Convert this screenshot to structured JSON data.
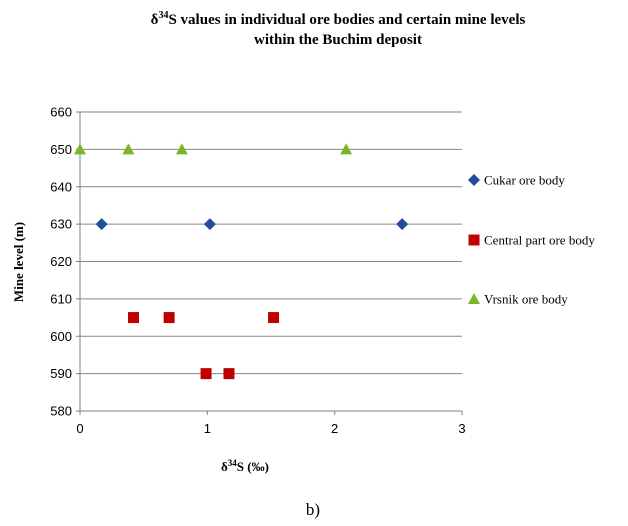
{
  "chart_data": {
    "type": "scatter",
    "title": {
      "line1_prefix": "δ",
      "line1_sup": "34",
      "line1_rest": "S values in individual ore bodies and certain mine levels",
      "line2": "within the Buchim deposit"
    },
    "xlabel": {
      "prefix": "δ",
      "sup": "34",
      "rest": "S (‰)"
    },
    "ylabel": "Mine level (m)",
    "xlim": [
      0,
      3
    ],
    "ylim": [
      580,
      660
    ],
    "x_ticks": [
      0,
      1,
      2,
      3
    ],
    "y_ticks": [
      580,
      590,
      600,
      610,
      620,
      630,
      640,
      650,
      660
    ],
    "grid": {
      "horizontal": true,
      "vertical": false
    },
    "legend_position": "right",
    "series": [
      {
        "name": "Cukar ore body",
        "marker": "diamond",
        "color": "#1F4E9C",
        "points": [
          [
            0.17,
            630
          ],
          [
            1.02,
            630
          ],
          [
            2.53,
            630
          ]
        ]
      },
      {
        "name": "Central part ore body",
        "marker": "square",
        "color": "#C00000",
        "points": [
          [
            0.42,
            605
          ],
          [
            0.7,
            605
          ],
          [
            1.52,
            605
          ],
          [
            0.99,
            590
          ],
          [
            1.17,
            590
          ]
        ]
      },
      {
        "name": "Vrsnik ore body",
        "marker": "triangle",
        "color": "#7CB52B",
        "points": [
          [
            0.0,
            650
          ],
          [
            0.38,
            650
          ],
          [
            0.8,
            650
          ],
          [
            2.09,
            650
          ]
        ]
      }
    ]
  },
  "caption": "b)"
}
